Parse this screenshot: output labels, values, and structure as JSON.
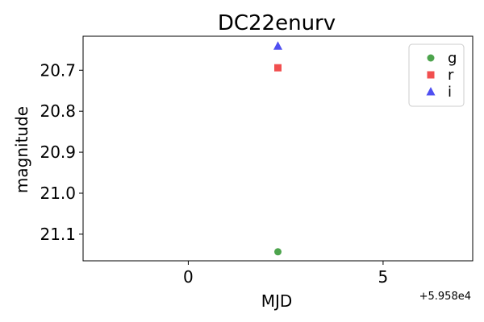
{
  "chart_data": {
    "type": "scatter",
    "title": "DC22enurv",
    "xlabel": "MJD",
    "ylabel": "magnitude",
    "x_offset_label": "+5.958e4",
    "xlim": [
      -2.7,
      7.3
    ],
    "ylim": [
      21.165,
      20.617
    ],
    "y_inverted": true,
    "xticks": [
      0,
      5
    ],
    "xtick_labels": [
      "0",
      "5"
    ],
    "yticks": [
      20.7,
      20.8,
      20.9,
      21.0,
      21.1
    ],
    "ytick_labels": [
      "20.7",
      "20.8",
      "20.9",
      "21.0",
      "21.1"
    ],
    "grid": false,
    "legend_position": "top-right",
    "series": [
      {
        "name": "g",
        "marker": "circle",
        "color": "#3a9a3a",
        "x": [
          2.3
        ],
        "y": [
          21.143
        ]
      },
      {
        "name": "r",
        "marker": "square",
        "color": "#f03c3c",
        "x": [
          2.3
        ],
        "y": [
          20.694
        ]
      },
      {
        "name": "i",
        "marker": "triangle",
        "color": "#3c3cf0",
        "x": [
          2.3
        ],
        "y": [
          20.641
        ]
      }
    ]
  }
}
